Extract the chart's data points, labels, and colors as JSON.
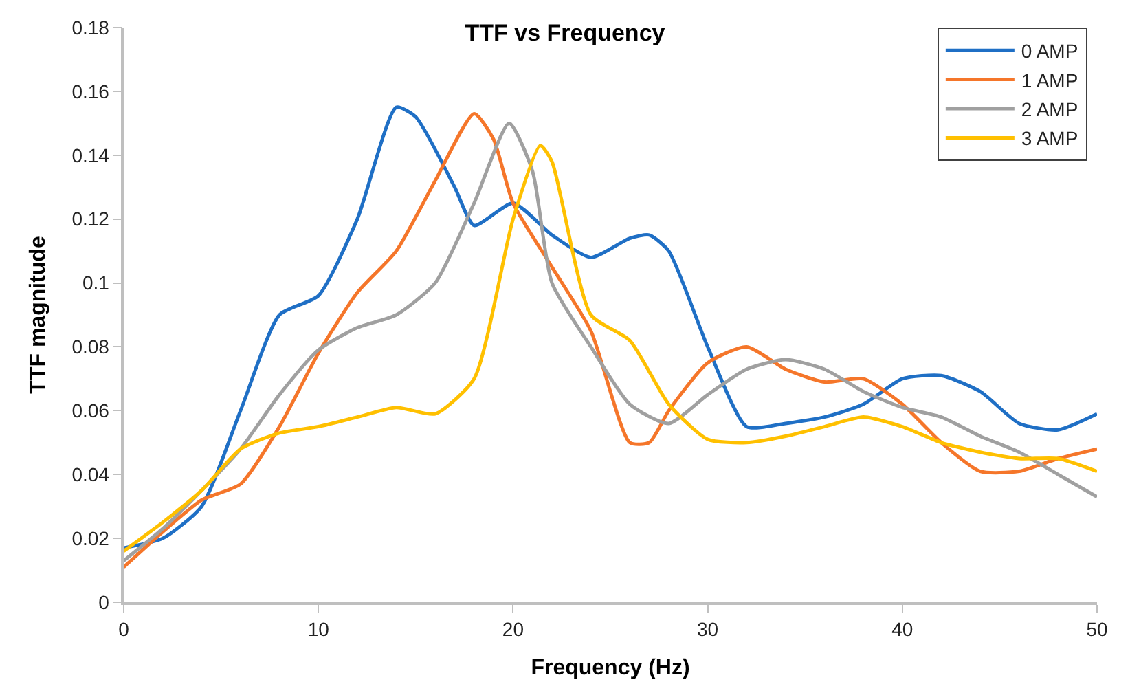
{
  "chart_data": {
    "type": "line",
    "title": "TTF vs Frequency",
    "xlabel": "Frequency (Hz)",
    "ylabel": "TTF magnitude",
    "xlim": [
      0,
      50
    ],
    "xticks": [
      0,
      10,
      20,
      30,
      40,
      50
    ],
    "ylim": [
      0,
      0.18
    ],
    "yticks": [
      0,
      0.02,
      0.04,
      0.06,
      0.08,
      0.1,
      0.12,
      0.14,
      0.16,
      0.18
    ],
    "legend": "top right",
    "marker": "none",
    "line_style": "solid",
    "series": [
      {
        "name": "0 AMP",
        "color": "#1f6fc5",
        "x": [
          0,
          2,
          4,
          6,
          8,
          10,
          12,
          14,
          15,
          17,
          18,
          20,
          22,
          24,
          26,
          27,
          28,
          30,
          32,
          34,
          36,
          38,
          40,
          42,
          44,
          46,
          48,
          50
        ],
        "values": [
          0.017,
          0.02,
          0.03,
          0.06,
          0.09,
          0.096,
          0.12,
          0.155,
          0.152,
          0.13,
          0.118,
          0.125,
          0.115,
          0.108,
          0.114,
          0.115,
          0.11,
          0.08,
          0.055,
          0.056,
          0.058,
          0.062,
          0.07,
          0.071,
          0.066,
          0.056,
          0.054,
          0.059
        ]
      },
      {
        "name": "1 AMP",
        "color": "#f5762a",
        "x": [
          0,
          2,
          4,
          6,
          8,
          10,
          12,
          14,
          16,
          18,
          19,
          20,
          22,
          24,
          26,
          27,
          28,
          30,
          32,
          34,
          36,
          38,
          40,
          42,
          44,
          46,
          48,
          50
        ],
        "values": [
          0.011,
          0.022,
          0.032,
          0.037,
          0.055,
          0.078,
          0.097,
          0.11,
          0.132,
          0.153,
          0.145,
          0.125,
          0.105,
          0.085,
          0.05,
          0.05,
          0.06,
          0.075,
          0.08,
          0.073,
          0.069,
          0.07,
          0.062,
          0.05,
          0.041,
          0.041,
          0.045,
          0.048
        ]
      },
      {
        "name": "2 AMP",
        "color": "#a0a0a0",
        "x": [
          0,
          2,
          4,
          6,
          8,
          10,
          12,
          14,
          16,
          18,
          19.8,
          21,
          22,
          24,
          26,
          28,
          30,
          32,
          34,
          36,
          38,
          40,
          42,
          44,
          46,
          48,
          50
        ],
        "values": [
          0.013,
          0.023,
          0.035,
          0.048,
          0.065,
          0.079,
          0.086,
          0.09,
          0.1,
          0.125,
          0.15,
          0.135,
          0.1,
          0.08,
          0.062,
          0.056,
          0.065,
          0.073,
          0.076,
          0.073,
          0.066,
          0.061,
          0.058,
          0.052,
          0.047,
          0.04,
          0.033
        ]
      },
      {
        "name": "3 AMP",
        "color": "#ffc000",
        "x": [
          0,
          2,
          4,
          6,
          8,
          10,
          12,
          14,
          16,
          18,
          20,
          21.4,
          22,
          24,
          26,
          28,
          30,
          32,
          34,
          36,
          38,
          40,
          42,
          44,
          46,
          48,
          50
        ],
        "values": [
          0.016,
          0.025,
          0.035,
          0.048,
          0.053,
          0.055,
          0.058,
          0.061,
          0.059,
          0.07,
          0.12,
          0.143,
          0.138,
          0.09,
          0.082,
          0.062,
          0.051,
          0.05,
          0.052,
          0.055,
          0.058,
          0.055,
          0.05,
          0.047,
          0.045,
          0.045,
          0.041
        ]
      }
    ]
  }
}
